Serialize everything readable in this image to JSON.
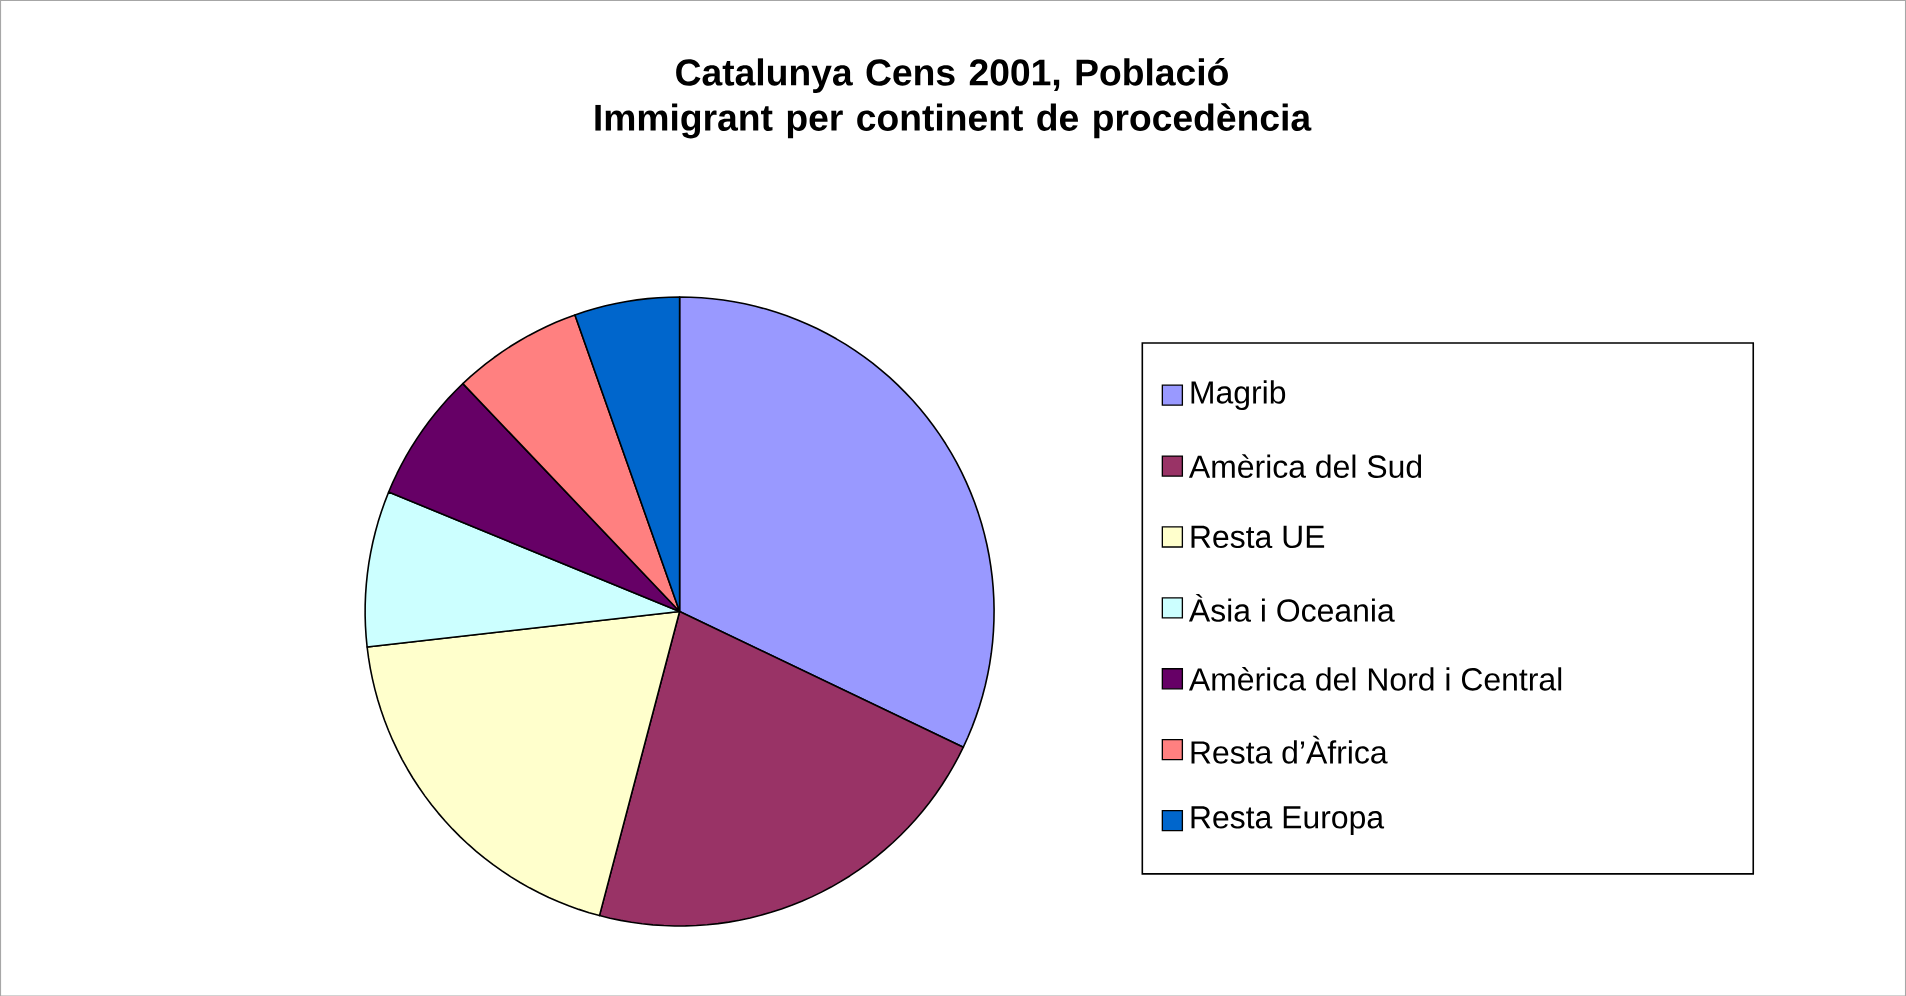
{
  "chart_data": {
    "type": "pie",
    "title": "Catalunya Cens 2001, Població Immigrant per continent de procedència",
    "categories": [
      "Magrib",
      "Amèrica del Sud",
      "Resta UE",
      "Àsia i Oceania",
      "Amèrica del Nord i Central",
      "Resta d’Àfrica",
      "Resta Europa"
    ],
    "values": [
      32.1,
      22.0,
      19.1,
      8.0,
      6.7,
      6.7,
      5.4
    ],
    "colors": [
      "#9999ff",
      "#993366",
      "#ffffcc",
      "#ccffff",
      "#660066",
      "#ff8080",
      "#0066cc"
    ],
    "legend": "right"
  }
}
